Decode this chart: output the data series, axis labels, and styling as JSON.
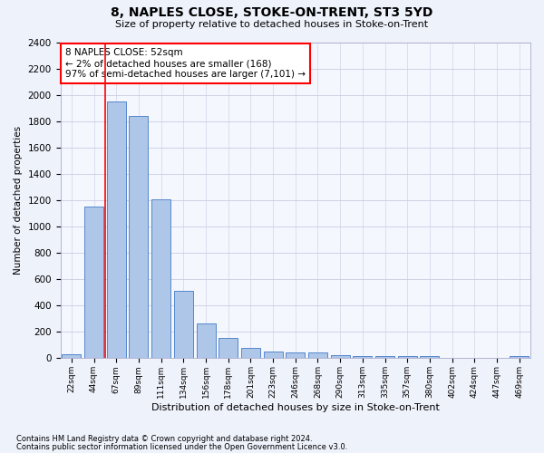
{
  "title1": "8, NAPLES CLOSE, STOKE-ON-TRENT, ST3 5YD",
  "title2": "Size of property relative to detached houses in Stoke-on-Trent",
  "xlabel": "Distribution of detached houses by size in Stoke-on-Trent",
  "ylabel": "Number of detached properties",
  "categories": [
    "22sqm",
    "44sqm",
    "67sqm",
    "89sqm",
    "111sqm",
    "134sqm",
    "156sqm",
    "178sqm",
    "201sqm",
    "223sqm",
    "246sqm",
    "268sqm",
    "290sqm",
    "313sqm",
    "335sqm",
    "357sqm",
    "380sqm",
    "402sqm",
    "424sqm",
    "447sqm",
    "469sqm"
  ],
  "values": [
    30,
    1150,
    1950,
    1840,
    1210,
    510,
    265,
    155,
    80,
    50,
    42,
    42,
    25,
    20,
    15,
    20,
    20,
    0,
    0,
    0,
    20
  ],
  "bar_color": "#aec6e8",
  "bar_edge_color": "#5588cc",
  "ylim": [
    0,
    2400
  ],
  "yticks": [
    0,
    200,
    400,
    600,
    800,
    1000,
    1200,
    1400,
    1600,
    1800,
    2000,
    2200,
    2400
  ],
  "red_line_x": 1.5,
  "annotation_text": "8 NAPLES CLOSE: 52sqm\n← 2% of detached houses are smaller (168)\n97% of semi-detached houses are larger (7,101) →",
  "footnote1": "Contains HM Land Registry data © Crown copyright and database right 2024.",
  "footnote2": "Contains public sector information licensed under the Open Government Licence v3.0.",
  "bg_color": "#eef2fb",
  "plot_bg_color": "#f5f7ff",
  "grid_color": "#c8cce0"
}
